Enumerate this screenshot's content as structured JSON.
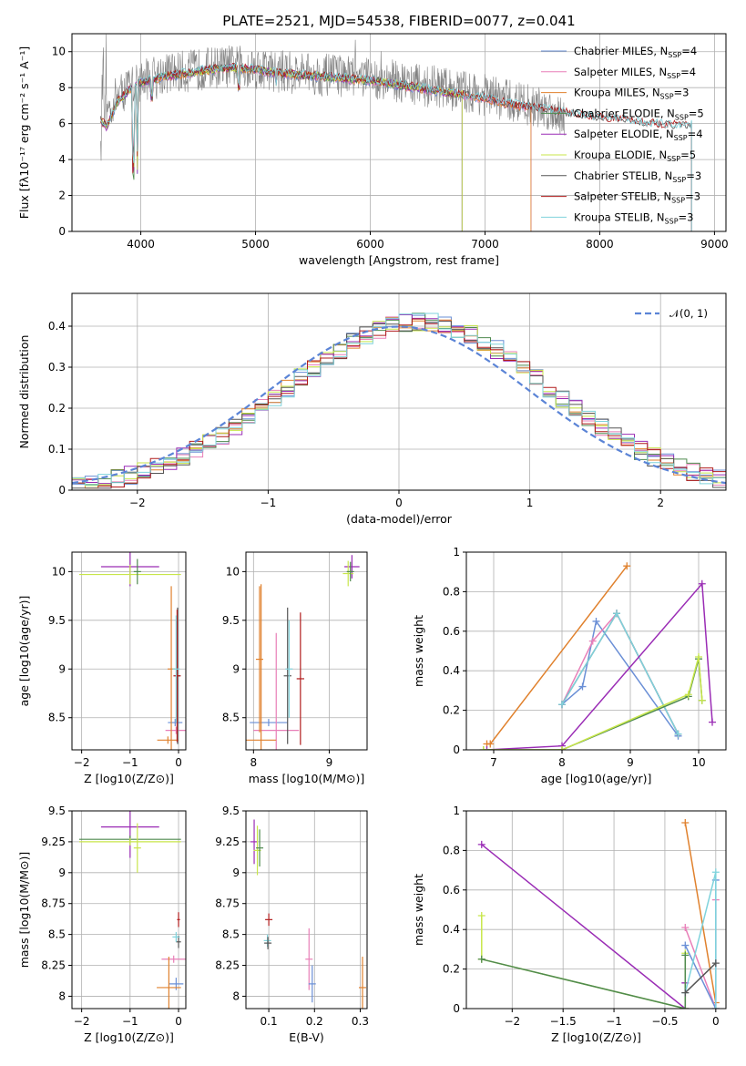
{
  "title": "PLATE=2521, MJD=54538, FIBERID=0077, z=0.041",
  "colors": {
    "Chabrier MILES": "#6a8fd6",
    "Salpeter MILES": "#e87fb8",
    "Kroupa MILES": "#e0812d",
    "Chabrier ELODIE": "#4f8a4f",
    "Salpeter ELODIE": "#9a2cb5",
    "Kroupa ELODIE": "#c8e64a",
    "Chabrier STELIB": "#555555",
    "Salpeter STELIB": "#b01c1c",
    "Kroupa STELIB": "#7fd3dc",
    "data": "#808080"
  },
  "chart_data": [
    {
      "id": "spectrum",
      "type": "line",
      "xlabel": "wavelength [Angstrom, rest frame]",
      "ylabel": "Flux [fλ10⁻¹⁷ erg cm⁻² s⁻¹ A⁻¹]",
      "xlim": [
        3400,
        9100
      ],
      "ylim": [
        0,
        11
      ],
      "xticks": [
        4000,
        5000,
        6000,
        7000,
        8000,
        9000
      ],
      "yticks": [
        0,
        2,
        4,
        6,
        8,
        10
      ],
      "legend_position": "upper-right",
      "data_envelope": {
        "x": [
          3650,
          3800,
          4000,
          4200,
          4400,
          4600,
          4800,
          5000,
          5200,
          5400,
          5600,
          5800,
          6000,
          6200,
          6400,
          6600,
          6800,
          7000,
          7200,
          7400,
          7600,
          7700
        ],
        "y": [
          6.0,
          7.6,
          8.4,
          8.8,
          8.9,
          9.1,
          9.2,
          9.1,
          8.9,
          8.8,
          8.7,
          8.6,
          8.5,
          8.4,
          8.2,
          8.0,
          7.8,
          7.6,
          7.3,
          7.0,
          6.7,
          6.5
        ]
      },
      "model_continuum": {
        "x": [
          3650,
          3700,
          3800,
          3900,
          4000,
          4200,
          4400,
          4600,
          4800,
          5000,
          5200,
          5400,
          5600,
          5800,
          6000,
          6200,
          6400,
          6600,
          6800,
          7000,
          7200,
          7400,
          7600,
          7800,
          8000,
          8200,
          8400,
          8600,
          8800
        ],
        "y": [
          6.2,
          5.8,
          7.2,
          7.9,
          8.3,
          8.6,
          8.8,
          9.0,
          9.1,
          9.0,
          8.8,
          8.7,
          8.6,
          8.5,
          8.4,
          8.2,
          8.0,
          7.8,
          7.6,
          7.4,
          7.1,
          6.9,
          6.7,
          6.5,
          6.3,
          6.2,
          6.0,
          5.9,
          5.9
        ]
      },
      "series": [
        {
          "name": "Chabrier MILES, N_SSP=4",
          "stop": 7400
        },
        {
          "name": "Salpeter MILES, N_SSP=4",
          "stop": 7400
        },
        {
          "name": "Kroupa MILES, N_SSP=3",
          "stop": 7400
        },
        {
          "name": "Chabrier ELODIE, N_SSP=5",
          "stop": 6800
        },
        {
          "name": "Salpeter ELODIE, N_SSP=4",
          "stop": 6800
        },
        {
          "name": "Kroupa ELODIE, N_SSP=5",
          "stop": 6800
        },
        {
          "name": "Chabrier STELIB, N_SSP=3",
          "stop": 8800
        },
        {
          "name": "Salpeter STELIB, N_SSP=3",
          "stop": 8800
        },
        {
          "name": "Kroupa STELIB, N_SSP=3",
          "stop": 8800
        }
      ]
    },
    {
      "id": "residual-histogram",
      "type": "line",
      "xlabel": "(data-model)/error",
      "ylabel": "Normed distribution",
      "xlim": [
        -2.5,
        2.5
      ],
      "ylim": [
        0,
        0.48
      ],
      "xticks": [
        -2,
        -1,
        0,
        1,
        2
      ],
      "yticks": [
        0.0,
        0.1,
        0.2,
        0.3,
        0.4
      ],
      "legend": "𝒩(0, 1)",
      "legend_position": "upper-right",
      "bin_width": 0.1,
      "bin_start": -2.5,
      "normal_curve": {
        "mean": 0,
        "sigma": 1
      }
    },
    {
      "id": "age-vs-Z",
      "type": "scatter",
      "xlabel": "Z [log10(Z/Z⊙)]",
      "ylabel": "age  [log10(age/yr)]",
      "xlim": [
        -2.2,
        0.15
      ],
      "ylim": [
        8.17,
        10.2
      ],
      "xticks": [
        -2,
        -1,
        0
      ],
      "yticks": [
        8.5,
        9.0,
        9.5,
        10.0
      ],
      "points": [
        {
          "series": "Chabrier MILES",
          "x": -0.07,
          "y": 8.45,
          "xerr": 0.15,
          "yerr": 0.0
        },
        {
          "series": "Salpeter MILES",
          "x": -0.05,
          "y": 8.37,
          "xerr": 0.22,
          "yerr": 0.0
        },
        {
          "series": "Kroupa MILES",
          "x": -0.22,
          "y": 8.27,
          "xerr": 0.22,
          "yerr": 0.0
        },
        {
          "series": "Kroupa MILES",
          "x": -0.15,
          "y": 9.0,
          "xerr": 0.0,
          "yerr": 0.85
        },
        {
          "series": "Chabrier STELIB",
          "x": -0.02,
          "y": 8.93,
          "xerr": 0.05,
          "yerr": 0.7
        },
        {
          "series": "Salpeter STELIB",
          "x": -0.03,
          "y": 8.93,
          "xerr": 0.0,
          "yerr": 0.68
        },
        {
          "series": "Kroupa STELIB",
          "x": -0.05,
          "y": 9.0,
          "xerr": 0.0,
          "yerr": 0.55
        },
        {
          "series": "Salpeter ELODIE",
          "x": -1.0,
          "y": 10.05,
          "xerr": 0.6,
          "yerr": 0.2
        },
        {
          "series": "Kroupa ELODIE",
          "x": -1.0,
          "y": 9.97,
          "xerr": 1.05,
          "yerr": 0.1
        },
        {
          "series": "Chabrier ELODIE",
          "x": -0.85,
          "y": 10.0,
          "xerr": 0.0,
          "yerr": 0.13
        }
      ]
    },
    {
      "id": "age-vs-mass",
      "type": "scatter",
      "xlabel": "mass [log10(M/M⊙)]",
      "ylabel": "",
      "xlim": [
        7.9,
        9.5
      ],
      "ylim": [
        8.17,
        10.2
      ],
      "xticks": [
        8,
        9
      ],
      "yticks": [
        8.5,
        9.0,
        9.5,
        10.0
      ],
      "points": [
        {
          "series": "Chabrier MILES",
          "x": 8.2,
          "y": 8.45,
          "xerr": 0.25,
          "yerr": 0.0
        },
        {
          "series": "Salpeter MILES",
          "x": 8.3,
          "y": 8.37,
          "xerr": 0.3,
          "yerr": 1.0
        },
        {
          "series": "Kroupa MILES",
          "x": 8.1,
          "y": 8.27,
          "xerr": 0.2,
          "yerr": 1.6
        },
        {
          "series": "Kroupa MILES",
          "x": 8.08,
          "y": 9.1,
          "xerr": 0.0,
          "yerr": 0.75
        },
        {
          "series": "Chabrier STELIB",
          "x": 8.45,
          "y": 8.93,
          "xerr": 0.05,
          "yerr": 0.7
        },
        {
          "series": "Salpeter STELIB",
          "x": 8.62,
          "y": 8.9,
          "xerr": 0.05,
          "yerr": 0.68
        },
        {
          "series": "Kroupa STELIB",
          "x": 8.47,
          "y": 9.0,
          "xerr": 0.0,
          "yerr": 0.5
        },
        {
          "series": "Salpeter ELODIE",
          "x": 9.3,
          "y": 10.05,
          "xerr": 0.1,
          "yerr": 0.12
        },
        {
          "series": "Kroupa ELODIE",
          "x": 9.25,
          "y": 9.98,
          "xerr": 0.07,
          "yerr": 0.13
        },
        {
          "series": "Chabrier ELODIE",
          "x": 9.28,
          "y": 10.0,
          "xerr": 0.0,
          "yerr": 0.1
        }
      ]
    },
    {
      "id": "mass-weight-vs-age",
      "type": "line",
      "xlabel": "age  [log10(age/yr)]",
      "ylabel": "mass weight",
      "xlim": [
        6.6,
        10.4
      ],
      "ylim": [
        0,
        1.0
      ],
      "xticks": [
        7,
        8,
        9,
        10
      ],
      "yticks": [
        0.0,
        0.2,
        0.4,
        0.6,
        0.8,
        1.0
      ],
      "series": [
        {
          "name": "Kroupa MILES",
          "x": [
            6.9,
            6.95,
            8.95
          ],
          "y": [
            0.03,
            0.03,
            0.93
          ]
        },
        {
          "name": "Chabrier MILES",
          "x": [
            8.0,
            8.3,
            8.5,
            9.7
          ],
          "y": [
            0.23,
            0.32,
            0.65,
            0.07
          ]
        },
        {
          "name": "Salpeter MILES",
          "x": [
            8.0,
            8.45,
            8.8,
            9.7
          ],
          "y": [
            0.23,
            0.55,
            0.69,
            0.08
          ]
        },
        {
          "name": "Chabrier STELIB",
          "x": [
            8.0,
            8.8,
            9.7
          ],
          "y": [
            0.23,
            0.69,
            0.08
          ]
        },
        {
          "name": "Kroupa STELIB",
          "x": [
            8.0,
            8.8,
            9.7
          ],
          "y": [
            0.23,
            0.69,
            0.08
          ]
        },
        {
          "name": "Salpeter ELODIE",
          "x": [
            6.9,
            8.0,
            10.05,
            10.2
          ],
          "y": [
            0.0,
            0.02,
            0.84,
            0.14
          ]
        },
        {
          "name": "Chabrier ELODIE",
          "x": [
            6.85,
            8.0,
            9.85,
            10.0,
            10.05
          ],
          "y": [
            0.0,
            0.0,
            0.27,
            0.46,
            0.25
          ]
        },
        {
          "name": "Kroupa ELODIE",
          "x": [
            6.85,
            8.0,
            9.85,
            10.0,
            10.05
          ],
          "y": [
            0.0,
            0.0,
            0.28,
            0.47,
            0.25
          ]
        }
      ]
    },
    {
      "id": "mass-vs-Z",
      "type": "scatter",
      "xlabel": "Z [log10(Z/Z⊙)]",
      "ylabel": "mass [log10(M/M⊙)]",
      "xlim": [
        -2.2,
        0.15
      ],
      "ylim": [
        7.9,
        9.5
      ],
      "xticks": [
        -2,
        -1,
        0
      ],
      "yticks": [
        8.0,
        8.25,
        8.5,
        8.75,
        9.0,
        9.25,
        9.5
      ],
      "points": [
        {
          "series": "Chabrier MILES",
          "x": -0.05,
          "y": 8.1,
          "xerr": 0.15,
          "yerr": 0.05
        },
        {
          "series": "Salpeter MILES",
          "x": -0.1,
          "y": 8.3,
          "xerr": 0.25,
          "yerr": 0.0
        },
        {
          "series": "Kroupa MILES",
          "x": -0.2,
          "y": 8.07,
          "xerr": 0.25,
          "yerr": 0.25
        },
        {
          "series": "Chabrier STELIB",
          "x": 0.0,
          "y": 8.44,
          "xerr": 0.05,
          "yerr": 0.05
        },
        {
          "series": "Salpeter STELIB",
          "x": 0.0,
          "y": 8.62,
          "xerr": 0.03,
          "yerr": 0.06
        },
        {
          "series": "Kroupa STELIB",
          "x": -0.05,
          "y": 8.48,
          "xerr": 0.0,
          "yerr": 0.04
        },
        {
          "series": "Salpeter ELODIE",
          "x": -1.0,
          "y": 9.37,
          "xerr": 0.6,
          "yerr": 0.25
        },
        {
          "series": "Chabrier ELODIE",
          "x": -1.0,
          "y": 9.27,
          "xerr": 1.05,
          "yerr": 0.0
        },
        {
          "series": "Kroupa ELODIE",
          "x": -1.0,
          "y": 9.25,
          "xerr": 1.05,
          "yerr": 0.0
        },
        {
          "series": "Kroupa ELODIE",
          "x": -0.85,
          "y": 9.2,
          "xerr": 0.0,
          "yerr": 0.2
        }
      ]
    },
    {
      "id": "mass-vs-EBV",
      "type": "scatter",
      "xlabel": "E(B-V)",
      "ylabel": "",
      "xlim": [
        0.05,
        0.315
      ],
      "ylim": [
        7.9,
        9.5
      ],
      "xticks": [
        0.1,
        0.2,
        0.3
      ],
      "yticks": [
        8.0,
        8.25,
        8.5,
        8.75,
        9.0,
        9.25,
        9.5
      ],
      "points": [
        {
          "series": "Salpeter ELODIE",
          "x": 0.068,
          "y": 9.25,
          "yerr": 0.18
        },
        {
          "series": "Kroupa ELODIE",
          "x": 0.075,
          "y": 9.18,
          "yerr": 0.2
        },
        {
          "series": "Chabrier ELODIE",
          "x": 0.08,
          "y": 9.2,
          "yerr": 0.15
        },
        {
          "series": "Salpeter STELIB",
          "x": 0.1,
          "y": 8.62,
          "yerr": 0.05
        },
        {
          "series": "Kroupa STELIB",
          "x": 0.097,
          "y": 8.45,
          "yerr": 0.05
        },
        {
          "series": "Chabrier STELIB",
          "x": 0.098,
          "y": 8.43,
          "yerr": 0.05
        },
        {
          "series": "Salpeter MILES",
          "x": 0.188,
          "y": 8.3,
          "yerr": 0.25
        },
        {
          "series": "Chabrier MILES",
          "x": 0.195,
          "y": 8.1,
          "yerr": 0.15
        },
        {
          "series": "Kroupa MILES",
          "x": 0.305,
          "y": 8.07,
          "yerr": 0.25
        }
      ]
    },
    {
      "id": "mass-weight-vs-Z",
      "type": "line",
      "xlabel": "Z [log10(Z/Z⊙)]",
      "ylabel": "mass weight",
      "xlim": [
        -2.45,
        0.1
      ],
      "ylim": [
        0,
        1.0
      ],
      "xticks": [
        -2.0,
        -1.5,
        -1.0,
        -0.5,
        0.0
      ],
      "yticks": [
        0.0,
        0.2,
        0.4,
        0.6,
        0.8,
        1.0
      ],
      "series": [
        {
          "name": "Salpeter ELODIE",
          "x": [
            -2.3,
            -0.3,
            -0.3
          ],
          "y": [
            0.83,
            0.0,
            0.13
          ]
        },
        {
          "name": "Kroupa ELODIE",
          "x": [
            -2.3,
            -2.3,
            -0.3,
            -0.3
          ],
          "y": [
            0.47,
            0.25,
            0.0,
            0.28
          ]
        },
        {
          "name": "Chabrier ELODIE",
          "x": [
            -2.3,
            -0.3,
            -0.3
          ],
          "y": [
            0.25,
            0.0,
            0.27
          ]
        },
        {
          "name": "Kroupa MILES",
          "x": [
            -0.3,
            0.0
          ],
          "y": [
            0.94,
            0.03
          ]
        },
        {
          "name": "Salpeter MILES",
          "x": [
            -0.3,
            0.0,
            0.0
          ],
          "y": [
            0.41,
            0.0,
            0.55
          ]
        },
        {
          "name": "Chabrier MILES",
          "x": [
            -0.3,
            0.0,
            0.0
          ],
          "y": [
            0.32,
            0.0,
            0.65
          ]
        },
        {
          "name": "Kroupa STELIB",
          "x": [
            -0.3,
            0.0,
            0.0
          ],
          "y": [
            0.08,
            0.69,
            0.0
          ]
        },
        {
          "name": "Chabrier STELIB",
          "x": [
            -0.3,
            0.0
          ],
          "y": [
            0.08,
            0.23
          ]
        }
      ]
    }
  ]
}
